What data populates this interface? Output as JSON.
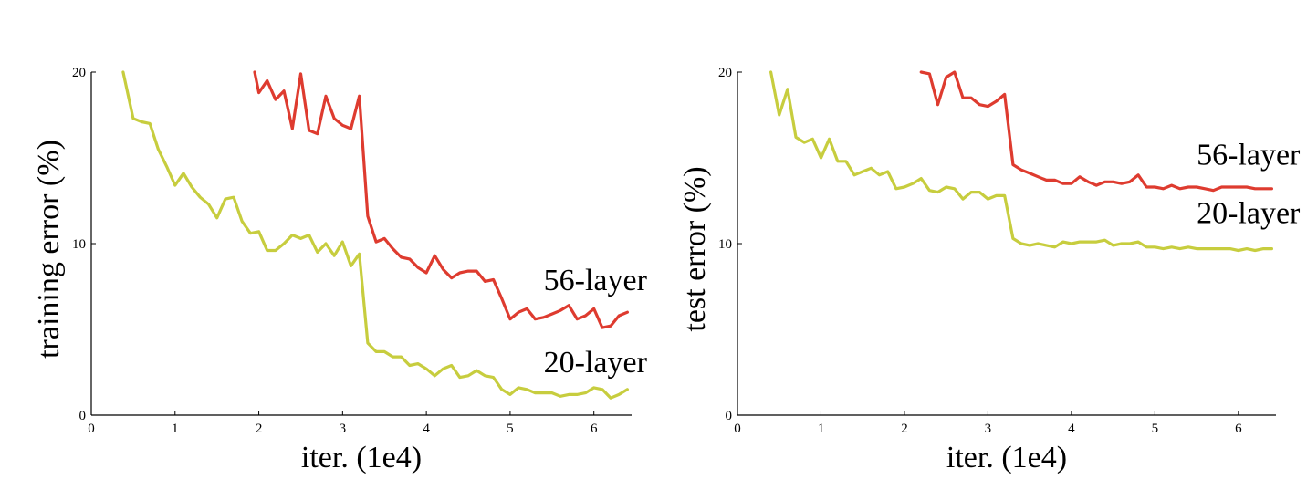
{
  "colors": {
    "red": "#de3b2f",
    "yellow": "#c7cd3e"
  },
  "chart_data": [
    {
      "type": "line",
      "xlabel": "iter. (1e4)",
      "ylabel": "training error (%)",
      "xlim": [
        0,
        6.45
      ],
      "ylim": [
        0,
        20
      ],
      "xticks": [
        0,
        1,
        2,
        3,
        4,
        5,
        6
      ],
      "yticks": [
        0,
        10,
        20
      ],
      "grid": false,
      "series": [
        {
          "name": "56-layer",
          "color_key": "red",
          "label_point": [
            5.4,
            7.3
          ],
          "x": [
            1.95,
            2.0,
            2.1,
            2.2,
            2.3,
            2.4,
            2.5,
            2.6,
            2.7,
            2.8,
            2.9,
            3.0,
            3.1,
            3.2,
            3.3,
            3.4,
            3.5,
            3.6,
            3.7,
            3.8,
            3.9,
            4.0,
            4.1,
            4.2,
            4.3,
            4.4,
            4.5,
            4.6,
            4.7,
            4.8,
            4.9,
            5.0,
            5.1,
            5.2,
            5.3,
            5.4,
            5.5,
            5.6,
            5.7,
            5.8,
            5.9,
            6.0,
            6.1,
            6.2,
            6.3,
            6.4
          ],
          "y": [
            20.0,
            18.8,
            19.5,
            18.4,
            18.9,
            16.7,
            19.9,
            16.6,
            16.4,
            18.6,
            17.3,
            16.9,
            16.7,
            18.6,
            11.6,
            10.1,
            10.3,
            9.7,
            9.2,
            9.1,
            8.6,
            8.3,
            9.3,
            8.5,
            8.0,
            8.3,
            8.4,
            8.4,
            7.8,
            7.9,
            6.8,
            5.6,
            6.0,
            6.2,
            5.6,
            5.7,
            5.9,
            6.1,
            6.4,
            5.6,
            5.8,
            6.2,
            5.1,
            5.2,
            5.8,
            6.0
          ]
        },
        {
          "name": "20-layer",
          "color_key": "yellow",
          "label_point": [
            5.4,
            2.5
          ],
          "x": [
            0.38,
            0.5,
            0.6,
            0.7,
            0.8,
            0.9,
            1.0,
            1.1,
            1.2,
            1.3,
            1.4,
            1.5,
            1.6,
            1.7,
            1.8,
            1.9,
            2.0,
            2.1,
            2.2,
            2.3,
            2.4,
            2.5,
            2.6,
            2.7,
            2.8,
            2.9,
            3.0,
            3.1,
            3.2,
            3.3,
            3.4,
            3.5,
            3.6,
            3.7,
            3.8,
            3.9,
            4.0,
            4.1,
            4.2,
            4.3,
            4.4,
            4.5,
            4.6,
            4.7,
            4.8,
            4.9,
            5.0,
            5.1,
            5.2,
            5.3,
            5.4,
            5.5,
            5.6,
            5.7,
            5.8,
            5.9,
            6.0,
            6.1,
            6.2,
            6.3,
            6.4
          ],
          "y": [
            20.0,
            17.3,
            17.1,
            17.0,
            15.5,
            14.5,
            13.4,
            14.1,
            13.3,
            12.7,
            12.3,
            11.5,
            12.6,
            12.7,
            11.3,
            10.6,
            10.7,
            9.6,
            9.6,
            10.0,
            10.5,
            10.3,
            10.5,
            9.5,
            10.0,
            9.3,
            10.1,
            8.7,
            9.4,
            4.2,
            3.7,
            3.7,
            3.4,
            3.4,
            2.9,
            3.0,
            2.7,
            2.3,
            2.7,
            2.9,
            2.2,
            2.3,
            2.6,
            2.3,
            2.2,
            1.5,
            1.2,
            1.6,
            1.5,
            1.3,
            1.3,
            1.3,
            1.1,
            1.2,
            1.2,
            1.3,
            1.6,
            1.5,
            1.0,
            1.2,
            1.5
          ]
        }
      ]
    },
    {
      "type": "line",
      "xlabel": "iter. (1e4)",
      "ylabel": "test error (%)",
      "xlim": [
        0,
        6.45
      ],
      "ylim": [
        0,
        20
      ],
      "xticks": [
        0,
        1,
        2,
        3,
        4,
        5,
        6
      ],
      "yticks": [
        0,
        10,
        20
      ],
      "grid": false,
      "series": [
        {
          "name": "56-layer",
          "color_key": "red",
          "label_point": [
            5.5,
            14.6
          ],
          "x": [
            2.2,
            2.3,
            2.4,
            2.5,
            2.6,
            2.7,
            2.8,
            2.9,
            3.0,
            3.1,
            3.2,
            3.3,
            3.4,
            3.5,
            3.6,
            3.7,
            3.8,
            3.9,
            4.0,
            4.1,
            4.2,
            4.3,
            4.4,
            4.5,
            4.6,
            4.7,
            4.8,
            4.9,
            5.0,
            5.1,
            5.2,
            5.3,
            5.4,
            5.5,
            5.6,
            5.7,
            5.8,
            5.9,
            6.0,
            6.1,
            6.2,
            6.3,
            6.4
          ],
          "y": [
            20.0,
            19.9,
            18.1,
            19.7,
            20.0,
            18.5,
            18.5,
            18.1,
            18.0,
            18.3,
            18.7,
            14.6,
            14.3,
            14.1,
            13.9,
            13.7,
            13.7,
            13.5,
            13.5,
            13.9,
            13.6,
            13.4,
            13.6,
            13.6,
            13.5,
            13.6,
            14.0,
            13.3,
            13.3,
            13.2,
            13.4,
            13.2,
            13.3,
            13.3,
            13.2,
            13.1,
            13.3,
            13.3,
            13.3,
            13.3,
            13.2,
            13.2,
            13.2
          ]
        },
        {
          "name": "20-layer",
          "color_key": "yellow",
          "label_point": [
            5.5,
            11.2
          ],
          "x": [
            0.4,
            0.5,
            0.6,
            0.7,
            0.8,
            0.9,
            1.0,
            1.1,
            1.2,
            1.3,
            1.4,
            1.5,
            1.6,
            1.7,
            1.8,
            1.9,
            2.0,
            2.1,
            2.2,
            2.3,
            2.4,
            2.5,
            2.6,
            2.7,
            2.8,
            2.9,
            3.0,
            3.1,
            3.2,
            3.3,
            3.4,
            3.5,
            3.6,
            3.7,
            3.8,
            3.9,
            4.0,
            4.1,
            4.2,
            4.3,
            4.4,
            4.5,
            4.6,
            4.7,
            4.8,
            4.9,
            5.0,
            5.1,
            5.2,
            5.3,
            5.4,
            5.5,
            5.6,
            5.7,
            5.8,
            5.9,
            6.0,
            6.1,
            6.2,
            6.3,
            6.4
          ],
          "y": [
            20.0,
            17.5,
            19.0,
            16.2,
            15.9,
            16.1,
            15.0,
            16.1,
            14.8,
            14.8,
            14.0,
            14.2,
            14.4,
            14.0,
            14.2,
            13.2,
            13.3,
            13.5,
            13.8,
            13.1,
            13.0,
            13.3,
            13.2,
            12.6,
            13.0,
            13.0,
            12.6,
            12.8,
            12.8,
            10.3,
            10.0,
            9.9,
            10.0,
            9.9,
            9.8,
            10.1,
            10.0,
            10.1,
            10.1,
            10.1,
            10.2,
            9.9,
            10.0,
            10.0,
            10.1,
            9.8,
            9.8,
            9.7,
            9.8,
            9.7,
            9.8,
            9.7,
            9.7,
            9.7,
            9.7,
            9.7,
            9.6,
            9.7,
            9.6,
            9.7,
            9.7
          ]
        }
      ]
    }
  ]
}
